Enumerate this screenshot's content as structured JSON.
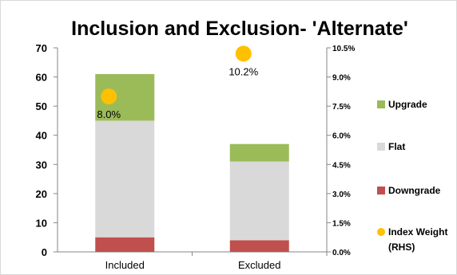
{
  "chart_data": {
    "type": "bar",
    "stacked": true,
    "title": "Inclusion and Exclusion-  'Alternate'",
    "categories": [
      "Included",
      "Excluded"
    ],
    "series": [
      {
        "name": "Downgrade",
        "values": [
          5,
          4
        ],
        "color": "#c0504d"
      },
      {
        "name": "Flat",
        "values": [
          40,
          27
        ],
        "color": "#d9d9d9"
      },
      {
        "name": "Upgrade",
        "values": [
          16,
          6
        ],
        "color": "#9bbb59"
      }
    ],
    "secondary_series": {
      "name": "Index Weight (RHS)",
      "type": "scatter",
      "axis": "right",
      "values": [
        0.08,
        0.102
      ],
      "labels": [
        "8.0%",
        "10.2%"
      ],
      "color": "#ffc000"
    },
    "ylim": [
      0,
      70
    ],
    "yticks": [
      "0",
      "10",
      "20",
      "30",
      "40",
      "50",
      "60",
      "70"
    ],
    "y2lim": [
      0,
      0.105
    ],
    "y2ticks": [
      "0.0%",
      "1.5%",
      "3.0%",
      "4.5%",
      "6.0%",
      "7.5%",
      "9.0%",
      "10.5%"
    ],
    "legend": {
      "position": "right",
      "entries": [
        "Upgrade",
        "Flat",
        "Downgrade",
        "Index Weight (RHS)"
      ]
    },
    "grid": false
  }
}
